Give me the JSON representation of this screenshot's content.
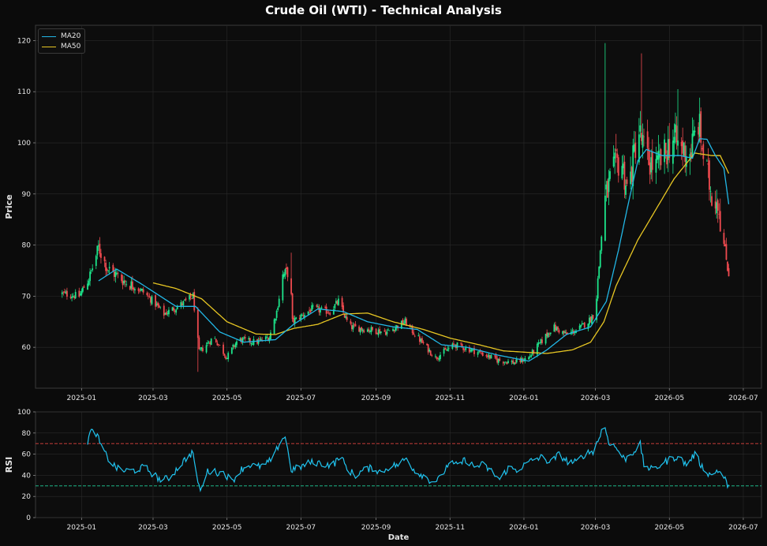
{
  "title": "Crude Oil (WTI) - Technical Analysis",
  "colors": {
    "background": "#0b0b0b",
    "panel": "#0d0d0d",
    "up": "#1de58b",
    "down": "#ef4a4f",
    "ma20": "#22b7e6",
    "ma50": "#e7c623",
    "rsi": "#20c4f0",
    "overbought": "#e0443f",
    "oversold": "#20d09a",
    "grid": "#2a2a2a",
    "text": "#e6e6e6"
  },
  "chart_data": [
    {
      "type": "candlestick",
      "ylabel": "Price",
      "ylim": [
        52,
        123
      ],
      "yticks": [
        60,
        70,
        80,
        90,
        100,
        110,
        120
      ],
      "xlim": [
        "2024-11-24",
        "2026-07-16"
      ],
      "xticks": [
        "2025-01",
        "2025-03",
        "2025-05",
        "2025-07",
        "2025-09",
        "2025-11",
        "2026-01",
        "2026-03",
        "2026-05",
        "2026-07"
      ],
      "grid": true,
      "legend_position": "top-left",
      "legend": [
        "MA20",
        "MA50"
      ],
      "price_start": "2024-12-16",
      "price_end": "2026-06-19",
      "close_keypoints": [
        [
          "2024-12-16",
          70.5
        ],
        [
          "2024-12-30",
          70.0
        ],
        [
          "2025-01-08",
          74.0
        ],
        [
          "2025-01-15",
          79.5
        ],
        [
          "2025-01-22",
          75.5
        ],
        [
          "2025-02-05",
          73.0
        ],
        [
          "2025-02-20",
          71.0
        ],
        [
          "2025-03-01",
          69.0
        ],
        [
          "2025-03-10",
          66.5
        ],
        [
          "2025-03-25",
          68.5
        ],
        [
          "2025-04-03",
          70.0
        ],
        [
          "2025-04-08",
          59.0
        ],
        [
          "2025-04-20",
          62.0
        ],
        [
          "2025-05-01",
          58.0
        ],
        [
          "2025-05-10",
          61.5
        ],
        [
          "2025-05-25",
          61.0
        ],
        [
          "2025-06-05",
          62.0
        ],
        [
          "2025-06-11",
          67.0
        ],
        [
          "2025-06-16",
          74.0
        ],
        [
          "2025-06-22",
          75.0
        ],
        [
          "2025-06-24",
          65.0
        ],
        [
          "2025-07-10",
          67.5
        ],
        [
          "2025-07-25",
          67.0
        ],
        [
          "2025-08-01",
          69.0
        ],
        [
          "2025-08-10",
          64.0
        ],
        [
          "2025-08-25",
          63.5
        ],
        [
          "2025-09-10",
          63.0
        ],
        [
          "2025-09-25",
          65.0
        ],
        [
          "2025-10-05",
          62.0
        ],
        [
          "2025-10-20",
          58.0
        ],
        [
          "2025-11-05",
          60.5
        ],
        [
          "2025-11-25",
          59.0
        ],
        [
          "2025-12-10",
          57.5
        ],
        [
          "2025-12-25",
          57.0
        ],
        [
          "2026-01-05",
          58.0
        ],
        [
          "2026-01-15",
          61.0
        ],
        [
          "2026-01-25",
          64.0
        ],
        [
          "2026-02-05",
          62.5
        ],
        [
          "2026-02-15",
          63.5
        ],
        [
          "2026-02-25",
          65.5
        ],
        [
          "2026-03-01",
          67.0
        ],
        [
          "2026-03-04",
          76.0
        ],
        [
          "2026-03-08",
          88.0
        ],
        [
          "2026-03-15",
          94.0
        ],
        [
          "2026-03-22",
          97.0
        ],
        [
          "2026-03-28",
          90.0
        ],
        [
          "2026-04-05",
          103.0
        ],
        [
          "2026-04-12",
          97.0
        ],
        [
          "2026-04-20",
          95.0
        ],
        [
          "2026-04-28",
          98.0
        ],
        [
          "2026-05-03",
          101.0
        ],
        [
          "2026-05-10",
          99.0
        ],
        [
          "2026-05-18",
          98.0
        ],
        [
          "2026-05-25",
          104.0
        ],
        [
          "2026-05-30",
          96.0
        ],
        [
          "2026-06-05",
          90.0
        ],
        [
          "2026-06-10",
          89.0
        ],
        [
          "2026-06-15",
          80.0
        ],
        [
          "2026-06-19",
          74.5
        ]
      ],
      "ma20_keypoints": [
        [
          "2025-01-15",
          73.0
        ],
        [
          "2025-01-30",
          75.3
        ],
        [
          "2025-02-20",
          72.3
        ],
        [
          "2025-03-20",
          68.0
        ],
        [
          "2025-04-05",
          68.0
        ],
        [
          "2025-04-25",
          63.0
        ],
        [
          "2025-05-15",
          61.0
        ],
        [
          "2025-06-10",
          61.5
        ],
        [
          "2025-06-25",
          64.5
        ],
        [
          "2025-07-15",
          67.5
        ],
        [
          "2025-08-05",
          67.0
        ],
        [
          "2025-08-25",
          65.0
        ],
        [
          "2025-09-15",
          64.0
        ],
        [
          "2025-10-05",
          63.5
        ],
        [
          "2025-10-25",
          60.5
        ],
        [
          "2025-11-15",
          60.0
        ],
        [
          "2025-12-10",
          58.5
        ],
        [
          "2026-01-05",
          57.3
        ],
        [
          "2026-01-20",
          59.5
        ],
        [
          "2026-02-05",
          62.5
        ],
        [
          "2026-02-25",
          64.0
        ],
        [
          "2026-03-10",
          69.0
        ],
        [
          "2026-03-20",
          79.0
        ],
        [
          "2026-03-28",
          88.0
        ],
        [
          "2026-04-05",
          96.5
        ],
        [
          "2026-04-12",
          98.7
        ],
        [
          "2026-04-25",
          97.5
        ],
        [
          "2026-05-10",
          97.5
        ],
        [
          "2026-05-20",
          97.0
        ],
        [
          "2026-05-26",
          100.8
        ],
        [
          "2026-06-01",
          100.7
        ],
        [
          "2026-06-08",
          97.5
        ],
        [
          "2026-06-15",
          95.0
        ],
        [
          "2026-06-19",
          88.0
        ]
      ],
      "ma50_keypoints": [
        [
          "2025-03-01",
          72.6
        ],
        [
          "2025-03-20",
          71.5
        ],
        [
          "2025-04-10",
          69.5
        ],
        [
          "2025-05-01",
          65.0
        ],
        [
          "2025-05-25",
          62.6
        ],
        [
          "2025-06-10",
          62.5
        ],
        [
          "2025-06-25",
          63.7
        ],
        [
          "2025-07-15",
          64.5
        ],
        [
          "2025-08-05",
          66.5
        ],
        [
          "2025-08-25",
          66.7
        ],
        [
          "2025-09-15",
          65.0
        ],
        [
          "2025-10-10",
          63.5
        ],
        [
          "2025-11-01",
          61.8
        ],
        [
          "2025-11-25",
          60.5
        ],
        [
          "2025-12-15",
          59.3
        ],
        [
          "2026-01-05",
          59.0
        ],
        [
          "2026-01-20",
          58.8
        ],
        [
          "2026-02-10",
          59.5
        ],
        [
          "2026-02-25",
          61.0
        ],
        [
          "2026-03-08",
          65.0
        ],
        [
          "2026-03-18",
          72.0
        ],
        [
          "2026-04-05",
          81.0
        ],
        [
          "2026-04-20",
          87.0
        ],
        [
          "2026-05-05",
          93.0
        ],
        [
          "2026-05-22",
          98.0
        ],
        [
          "2026-06-05",
          97.5
        ],
        [
          "2026-06-12",
          97.5
        ],
        [
          "2026-06-19",
          94.0
        ]
      ]
    },
    {
      "type": "line",
      "xlabel": "Date",
      "ylabel": "RSI",
      "ylim": [
        0,
        100
      ],
      "yticks": [
        0,
        20,
        40,
        60,
        80,
        100
      ],
      "xlim": [
        "2024-11-24",
        "2026-07-16"
      ],
      "xticks": [
        "2025-01",
        "2025-03",
        "2025-05",
        "2025-07",
        "2025-09",
        "2025-11",
        "2026-01",
        "2026-03",
        "2026-05",
        "2026-07"
      ],
      "grid": true,
      "reference_lines": [
        70,
        30
      ],
      "rsi_keypoints": [
        [
          "2025-01-05",
          67
        ],
        [
          "2025-01-08",
          80
        ],
        [
          "2025-01-12",
          83
        ],
        [
          "2025-01-18",
          65
        ],
        [
          "2025-01-25",
          52
        ],
        [
          "2025-02-01",
          45
        ],
        [
          "2025-02-08",
          44
        ],
        [
          "2025-02-15",
          45
        ],
        [
          "2025-02-22",
          48
        ],
        [
          "2025-03-01",
          41
        ],
        [
          "2025-03-08",
          35
        ],
        [
          "2025-03-15",
          38
        ],
        [
          "2025-03-22",
          48
        ],
        [
          "2025-03-29",
          57
        ],
        [
          "2025-04-03",
          62
        ],
        [
          "2025-04-07",
          30
        ],
        [
          "2025-04-10",
          27
        ],
        [
          "2025-04-15",
          44
        ],
        [
          "2025-04-22",
          43
        ],
        [
          "2025-04-29",
          42
        ],
        [
          "2025-05-05",
          34
        ],
        [
          "2025-05-12",
          45
        ],
        [
          "2025-05-19",
          50
        ],
        [
          "2025-05-26",
          48
        ],
        [
          "2025-06-02",
          50
        ],
        [
          "2025-06-09",
          58
        ],
        [
          "2025-06-14",
          73
        ],
        [
          "2025-06-18",
          77
        ],
        [
          "2025-06-23",
          45
        ],
        [
          "2025-07-01",
          48
        ],
        [
          "2025-07-08",
          52
        ],
        [
          "2025-07-15",
          52
        ],
        [
          "2025-07-22",
          50
        ],
        [
          "2025-07-29",
          51
        ],
        [
          "2025-08-02",
          60
        ],
        [
          "2025-08-08",
          46
        ],
        [
          "2025-08-15",
          40
        ],
        [
          "2025-08-22",
          45
        ],
        [
          "2025-08-29",
          47
        ],
        [
          "2025-09-05",
          43
        ],
        [
          "2025-09-12",
          48
        ],
        [
          "2025-09-19",
          50
        ],
        [
          "2025-09-26",
          56
        ],
        [
          "2025-10-03",
          44
        ],
        [
          "2025-10-10",
          40
        ],
        [
          "2025-10-17",
          34
        ],
        [
          "2025-10-24",
          37
        ],
        [
          "2025-10-31",
          52
        ],
        [
          "2025-11-07",
          49
        ],
        [
          "2025-11-14",
          55
        ],
        [
          "2025-11-21",
          48
        ],
        [
          "2025-11-28",
          50
        ],
        [
          "2025-12-05",
          44
        ],
        [
          "2025-12-12",
          36
        ],
        [
          "2025-12-19",
          47
        ],
        [
          "2025-12-26",
          45
        ],
        [
          "2026-01-02",
          50
        ],
        [
          "2026-01-09",
          55
        ],
        [
          "2026-01-16",
          57
        ],
        [
          "2026-01-23",
          52
        ],
        [
          "2026-01-30",
          60
        ],
        [
          "2026-02-06",
          53
        ],
        [
          "2026-02-13",
          52
        ],
        [
          "2026-02-20",
          60
        ],
        [
          "2026-02-27",
          63
        ],
        [
          "2026-03-04",
          75
        ],
        [
          "2026-03-08",
          89
        ],
        [
          "2026-03-12",
          72
        ],
        [
          "2026-03-18",
          66
        ],
        [
          "2026-03-25",
          55
        ],
        [
          "2026-04-01",
          62
        ],
        [
          "2026-04-07",
          69
        ],
        [
          "2026-04-10",
          50
        ],
        [
          "2026-04-17",
          45
        ],
        [
          "2026-04-24",
          50
        ],
        [
          "2026-05-01",
          55
        ],
        [
          "2026-05-08",
          58
        ],
        [
          "2026-05-15",
          50
        ],
        [
          "2026-05-22",
          60
        ],
        [
          "2026-05-28",
          48
        ],
        [
          "2026-06-04",
          40
        ],
        [
          "2026-06-10",
          45
        ],
        [
          "2026-06-15",
          38
        ],
        [
          "2026-06-19",
          29
        ]
      ]
    }
  ]
}
